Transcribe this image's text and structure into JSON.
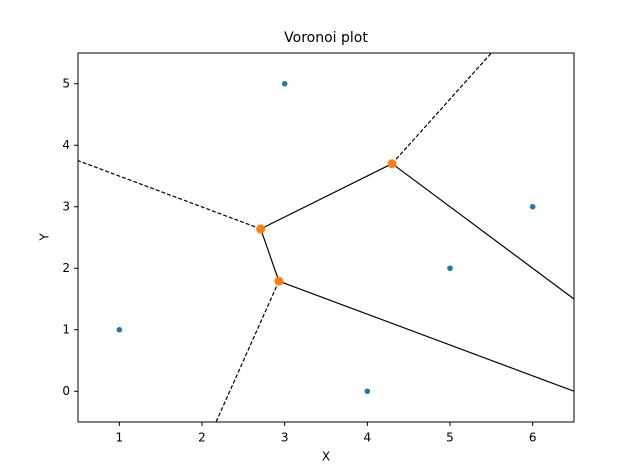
{
  "chart_data": {
    "type": "voronoi",
    "title": "Voronoi plot",
    "x_label": "X",
    "y_label": "Y",
    "points": {
      "x": [
        1,
        3,
        4,
        5,
        6
      ],
      "y": [
        1,
        5,
        0,
        2,
        3
      ],
      "color": "#1f77b4"
    },
    "vertices": {
      "x": [
        2.71,
        2.93,
        4.3
      ],
      "y": [
        2.64,
        1.79,
        3.7
      ],
      "color": "#ff7f0e"
    },
    "edges": [
      {
        "x": [
          2.71,
          4.3
        ],
        "y": [
          2.64,
          3.7
        ],
        "style": "solid"
      },
      {
        "x": [
          2.71,
          2.93
        ],
        "y": [
          2.64,
          1.79
        ],
        "style": "solid"
      },
      {
        "x": [
          2.93,
          6.5
        ],
        "y": [
          1.79,
          0
        ],
        "style": "solid"
      },
      {
        "x": [
          4.3,
          6.5
        ],
        "y": [
          3.7,
          1.5
        ],
        "style": "solid"
      },
      {
        "x": [
          2.71,
          0.5
        ],
        "y": [
          2.64,
          3.75
        ],
        "style": "dashed"
      },
      {
        "x": [
          2.93,
          2.17
        ],
        "y": [
          1.79,
          -0.5
        ],
        "style": "dashed"
      },
      {
        "x": [
          4.3,
          5.5
        ],
        "y": [
          3.7,
          5.5
        ],
        "style": "dashed"
      }
    ],
    "xlim": [
      0.5,
      6.5
    ],
    "ylim": [
      -0.5,
      5.5
    ],
    "xticks": [
      1,
      2,
      3,
      4,
      5,
      6
    ],
    "yticks": [
      0,
      1,
      2,
      3,
      4,
      5
    ]
  }
}
